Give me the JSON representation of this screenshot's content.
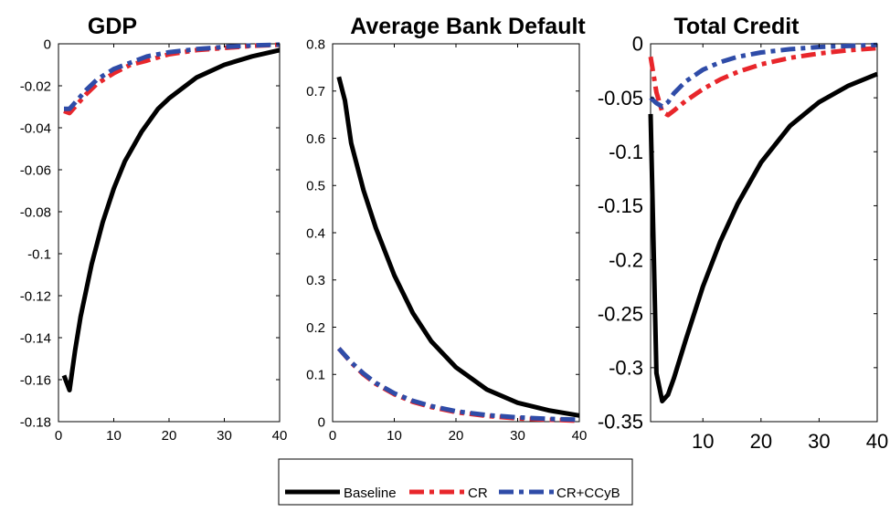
{
  "colors": {
    "Baseline": "#000000",
    "CR": "#e8262b",
    "CR+CCyB": "#2f4ca8"
  },
  "legend": {
    "placement": "bottom-center",
    "entries": [
      {
        "label": "Baseline",
        "style": "solid"
      },
      {
        "label": "CR",
        "style": "dashdot"
      },
      {
        "label": "CR+CCyB",
        "style": "dashdot"
      }
    ]
  },
  "chart_data": [
    {
      "type": "line",
      "title": "GDP",
      "xlim": [
        0,
        40
      ],
      "ylim": [
        -0.18,
        0
      ],
      "xticks": [
        0,
        10,
        20,
        30,
        40
      ],
      "xtick_labels": [
        "0",
        "10",
        "20",
        "30",
        "40"
      ],
      "yticks": [
        0,
        -0.02,
        -0.04,
        -0.06,
        -0.08,
        -0.1,
        -0.12,
        -0.14,
        -0.16,
        -0.18
      ],
      "ytick_labels": [
        "0",
        "-0.02",
        "-0.04",
        "-0.06",
        "-0.08",
        "-0.1",
        "-0.12",
        "-0.14",
        "-0.16",
        "-0.18"
      ],
      "grid": false,
      "series": [
        {
          "name": "Baseline",
          "x": [
            1,
            2,
            3,
            4,
            6,
            8,
            10,
            12,
            15,
            18,
            20,
            25,
            30,
            35,
            40
          ],
          "values": [
            -0.158,
            -0.165,
            -0.146,
            -0.13,
            -0.105,
            -0.085,
            -0.069,
            -0.056,
            -0.042,
            -0.031,
            -0.026,
            -0.016,
            -0.01,
            -0.006,
            -0.003
          ]
        },
        {
          "name": "CR",
          "x": [
            1,
            2,
            3,
            5,
            7,
            10,
            13,
            16,
            20,
            25,
            30,
            35,
            40
          ],
          "values": [
            -0.032,
            -0.033,
            -0.03,
            -0.024,
            -0.019,
            -0.014,
            -0.01,
            -0.008,
            -0.005,
            -0.003,
            -0.002,
            -0.001,
            -0.0005
          ]
        },
        {
          "name": "CR+CCyB",
          "x": [
            1,
            2,
            3,
            5,
            7,
            10,
            13,
            16,
            20,
            25,
            30,
            35,
            40
          ],
          "values": [
            -0.031,
            -0.031,
            -0.028,
            -0.022,
            -0.017,
            -0.012,
            -0.009,
            -0.006,
            -0.004,
            -0.0025,
            -0.0015,
            -0.0008,
            -0.0004
          ]
        }
      ]
    },
    {
      "type": "line",
      "title": "Average Bank Default",
      "xlim": [
        0,
        40
      ],
      "ylim": [
        0,
        0.8
      ],
      "xticks": [
        0,
        10,
        20,
        30,
        40
      ],
      "xtick_labels": [
        "0",
        "10",
        "20",
        "30",
        "40"
      ],
      "yticks": [
        0,
        0.1,
        0.2,
        0.3,
        0.4,
        0.5,
        0.6,
        0.7,
        0.8
      ],
      "ytick_labels": [
        "0",
        "0.1",
        "0.2",
        "0.3",
        "0.4",
        "0.5",
        "0.6",
        "0.7",
        "0.8"
      ],
      "grid": false,
      "series": [
        {
          "name": "Baseline",
          "x": [
            1,
            2,
            3,
            5,
            7,
            10,
            13,
            16,
            20,
            25,
            30,
            35,
            40
          ],
          "values": [
            0.73,
            0.68,
            0.59,
            0.49,
            0.41,
            0.31,
            0.23,
            0.17,
            0.115,
            0.068,
            0.04,
            0.024,
            0.013
          ]
        },
        {
          "name": "CR",
          "x": [
            1,
            3,
            5,
            7,
            10,
            13,
            16,
            20,
            25,
            30,
            35,
            40
          ],
          "values": [
            0.155,
            0.125,
            0.1,
            0.08,
            0.058,
            0.042,
            0.031,
            0.02,
            0.012,
            0.007,
            0.004,
            0.002
          ]
        },
        {
          "name": "CR+CCyB",
          "x": [
            1,
            3,
            5,
            7,
            10,
            13,
            16,
            20,
            25,
            30,
            35,
            40
          ],
          "values": [
            0.155,
            0.126,
            0.102,
            0.082,
            0.06,
            0.044,
            0.033,
            0.022,
            0.014,
            0.009,
            0.006,
            0.004
          ]
        }
      ]
    },
    {
      "type": "line",
      "title": "Total Credit",
      "xlim": [
        1,
        40
      ],
      "ylim": [
        -0.35,
        0
      ],
      "xticks": [
        10,
        20,
        30,
        40
      ],
      "xtick_labels": [
        "10",
        "20",
        "30",
        "40"
      ],
      "yticks": [
        0,
        -0.05,
        -0.1,
        -0.15,
        -0.2,
        -0.25,
        -0.3,
        -0.35
      ],
      "ytick_labels": [
        "0",
        "-0.05",
        "-0.1",
        "-0.15",
        "-0.2",
        "-0.25",
        "-0.3",
        "-0.35"
      ],
      "grid": false,
      "series": [
        {
          "name": "Baseline",
          "x": [
            1,
            2,
            3,
            4,
            5,
            7,
            10,
            13,
            16,
            20,
            25,
            30,
            35,
            40
          ],
          "values": [
            -0.065,
            -0.305,
            -0.331,
            -0.325,
            -0.31,
            -0.275,
            -0.225,
            -0.183,
            -0.148,
            -0.11,
            -0.076,
            -0.054,
            -0.039,
            -0.028
          ]
        },
        {
          "name": "CR",
          "x": [
            1,
            2,
            3,
            4,
            5,
            7,
            10,
            13,
            16,
            20,
            25,
            30,
            35,
            40
          ],
          "values": [
            -0.012,
            -0.045,
            -0.063,
            -0.066,
            -0.062,
            -0.053,
            -0.042,
            -0.033,
            -0.026,
            -0.019,
            -0.013,
            -0.009,
            -0.006,
            -0.004
          ]
        },
        {
          "name": "CR+CCyB",
          "x": [
            1,
            2,
            3,
            4,
            5,
            7,
            10,
            13,
            16,
            20,
            25,
            30,
            35,
            40
          ],
          "values": [
            -0.05,
            -0.055,
            -0.058,
            -0.054,
            -0.046,
            -0.035,
            -0.024,
            -0.017,
            -0.012,
            -0.008,
            -0.005,
            -0.003,
            -0.002,
            -0.001
          ]
        }
      ]
    }
  ]
}
